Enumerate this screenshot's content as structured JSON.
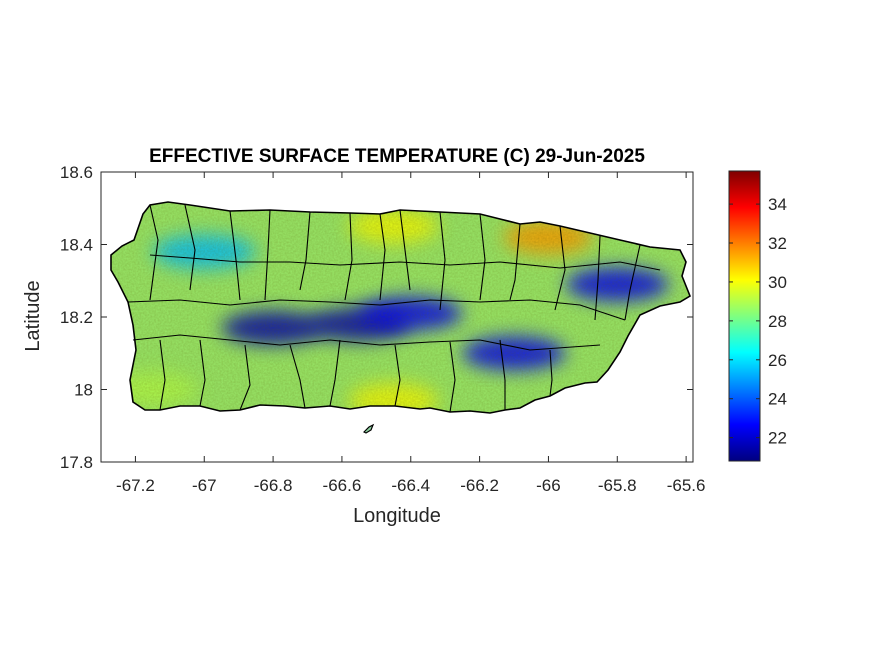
{
  "figure": {
    "title": "EFFECTIVE SURFACE TEMPERATURE (C) 29-Jun-2025",
    "xlabel": "Longitude",
    "ylabel": "Latitude"
  },
  "map": {
    "region": "Puerto Rico",
    "variable": "effective surface temperature",
    "units": "C",
    "date": "29-Jun-2025",
    "xlim": [
      -67.3,
      -65.58
    ],
    "ylim": [
      17.8,
      18.6
    ],
    "xticks": [
      -67.2,
      -67,
      -66.8,
      -66.6,
      -66.4,
      -66.2,
      -66,
      -65.8,
      -65.6
    ],
    "xtick_labels": [
      "-67.2",
      "-67",
      "-66.8",
      "-66.6",
      "-66.4",
      "-66.2",
      "-66",
      "-65.8",
      "-65.6"
    ],
    "yticks": [
      17.8,
      18,
      18.2,
      18.4,
      18.6
    ],
    "ytick_labels": [
      "17.8",
      "18",
      "18.2",
      "18.4",
      "18.6"
    ],
    "colormap": "jet",
    "boundary_color": "#000000",
    "cool_zones": [
      {
        "lon": -66.8,
        "lat": 18.17,
        "temp": 21.5
      },
      {
        "lon": -66.55,
        "lat": 18.18,
        "temp": 21.5
      },
      {
        "lon": -66.4,
        "lat": 18.21,
        "temp": 22.5
      },
      {
        "lon": -66.1,
        "lat": 18.1,
        "temp": 22.5
      },
      {
        "lon": -65.8,
        "lat": 18.29,
        "temp": 22.5
      },
      {
        "lon": -67.0,
        "lat": 18.38,
        "temp": 25.5
      }
    ],
    "warm_zones": [
      {
        "lon": -66.0,
        "lat": 18.42,
        "temp": 31.5
      },
      {
        "lon": -66.45,
        "lat": 18.45,
        "temp": 30
      },
      {
        "lon": -66.45,
        "lat": 17.97,
        "temp": 30
      },
      {
        "lon": -67.15,
        "lat": 18.0,
        "temp": 29
      }
    ]
  },
  "colorbar": {
    "range": [
      20.8,
      35.7
    ],
    "ticks": [
      22,
      24,
      26,
      28,
      30,
      32,
      34
    ],
    "tick_labels": [
      "22",
      "24",
      "26",
      "28",
      "30",
      "32",
      "34"
    ]
  }
}
